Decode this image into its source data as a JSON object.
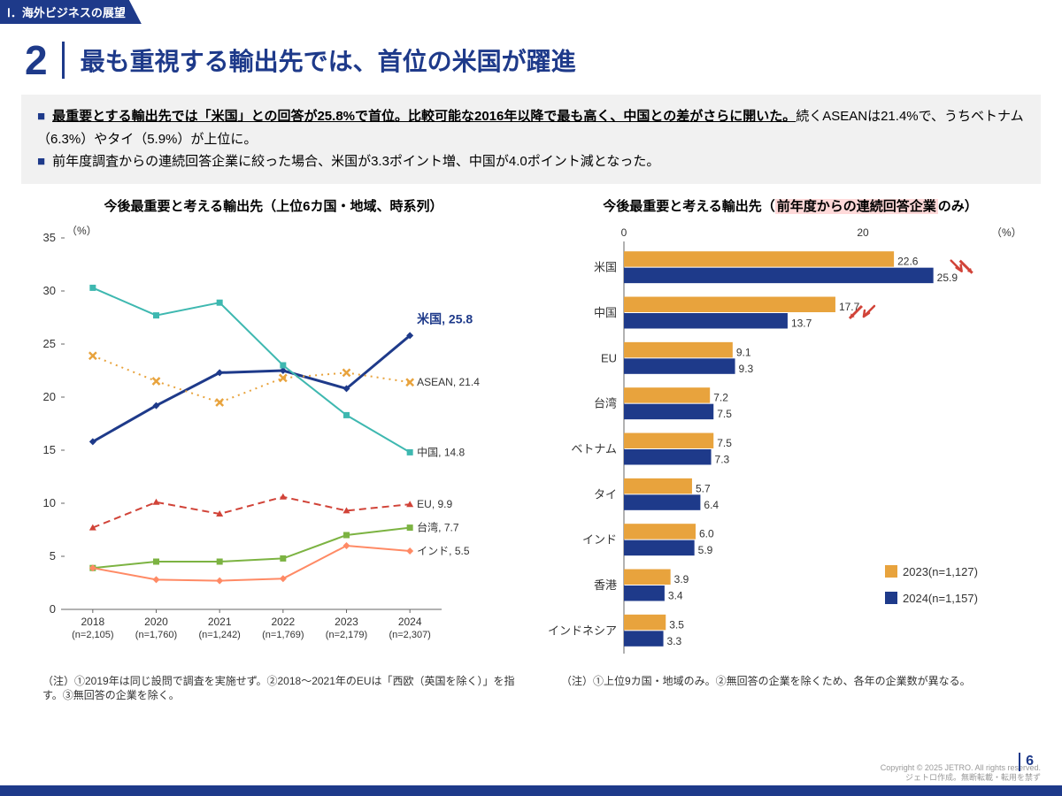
{
  "header_tab": "Ⅰ．海外ビジネスの展望",
  "title_number": "2",
  "title_text": "最も重視する輸出先では、首位の米国が躍進",
  "summary_line1_bold": "最重要とする輸出先では「米国」との回答が25.8%で首位。比較可能な2016年以降で最も高く、中国との差がさらに開いた。",
  "summary_line1_rest": "続くASEANは21.4%で、うちベトナム（6.3%）やタイ（5.9%）が上位に。",
  "summary_line2": "前年度調査からの連続回答企業に絞った場合、米国が3.3ポイント増、中国が4.0ポイント減となった。",
  "left_chart": {
    "title": "今後最重要と考える輸出先（上位6カ国・地域、時系列）",
    "y_unit": "（%）",
    "ylim": [
      0,
      35
    ],
    "ytick_step": 5,
    "x_labels": [
      "2018\n(n=2,105)",
      "2020\n(n=1,760)",
      "2021\n(n=1,242)",
      "2022\n(n=1,769)",
      "2023\n(n=2,179)",
      "2024\n(n=2,307)"
    ],
    "series": [
      {
        "name": "米国",
        "end_label": "米国, 25.8",
        "color": "#1e3a8a",
        "style": "solid",
        "marker": "diamond",
        "values": [
          15.8,
          19.2,
          22.3,
          22.5,
          20.8,
          25.8
        ],
        "highlight": true
      },
      {
        "name": "ASEAN",
        "end_label": "ASEAN, 21.4",
        "color": "#e8a33d",
        "style": "dotted",
        "marker": "cross",
        "values": [
          23.9,
          21.5,
          19.5,
          21.8,
          22.3,
          21.4
        ]
      },
      {
        "name": "中国",
        "end_label": "中国, 14.8",
        "color": "#3eb8b0",
        "style": "solid",
        "marker": "square",
        "values": [
          30.3,
          27.7,
          28.9,
          23.0,
          18.3,
          14.8
        ]
      },
      {
        "name": "EU",
        "end_label": "EU, 9.9",
        "color": "#d14338",
        "style": "dashed",
        "marker": "triangle",
        "values": [
          7.7,
          10.1,
          9.0,
          10.6,
          9.3,
          9.9
        ]
      },
      {
        "name": "台湾",
        "end_label": "台湾, 7.7",
        "color": "#7cb342",
        "style": "solid",
        "marker": "square",
        "values": [
          3.9,
          4.5,
          4.5,
          4.8,
          7.0,
          7.7
        ]
      },
      {
        "name": "インド",
        "end_label": "インド, 5.5",
        "color": "#ff8a65",
        "style": "solid",
        "marker": "diamond",
        "values": [
          3.9,
          2.8,
          2.7,
          2.9,
          6.0,
          5.5
        ]
      }
    ],
    "note": "（注）①2019年は同じ設問で調査を実施せず。②2018～2021年のEUは「西欧（英国を除く）」を指す。③無回答の企業を除く。"
  },
  "right_chart": {
    "title_prefix": "今後最重要と考える輸出先（",
    "title_hl": "前年度からの連続回答企業",
    "title_suffix": "のみ）",
    "x_unit": "（%）",
    "xlim": [
      0,
      30
    ],
    "xtick_step": 20,
    "categories": [
      "米国",
      "中国",
      "EU",
      "台湾",
      "ベトナム",
      "タイ",
      "インド",
      "香港",
      "インドネシア"
    ],
    "series": [
      {
        "name": "2023(n=1,127)",
        "color": "#e8a33d",
        "values": [
          22.6,
          17.7,
          9.1,
          7.2,
          7.5,
          5.7,
          6.0,
          3.9,
          3.5
        ]
      },
      {
        "name": "2024(n=1,157)",
        "color": "#1e3a8a",
        "values": [
          25.9,
          13.7,
          9.3,
          7.5,
          7.3,
          6.4,
          5.9,
          3.4,
          3.3
        ]
      }
    ],
    "arrows": [
      {
        "row": 0,
        "dir": "right",
        "color": "#d14338"
      },
      {
        "row": 1,
        "dir": "left",
        "color": "#d14338"
      }
    ],
    "note": "（注）①上位9カ国・地域のみ。②無回答の企業を除くため、各年の企業数が異なる。"
  },
  "footer_copy": "Copyright © 2025 JETRO. All rights reserved.\nジェトロ作成。無断転載・転用を禁ず",
  "page_number": "6"
}
